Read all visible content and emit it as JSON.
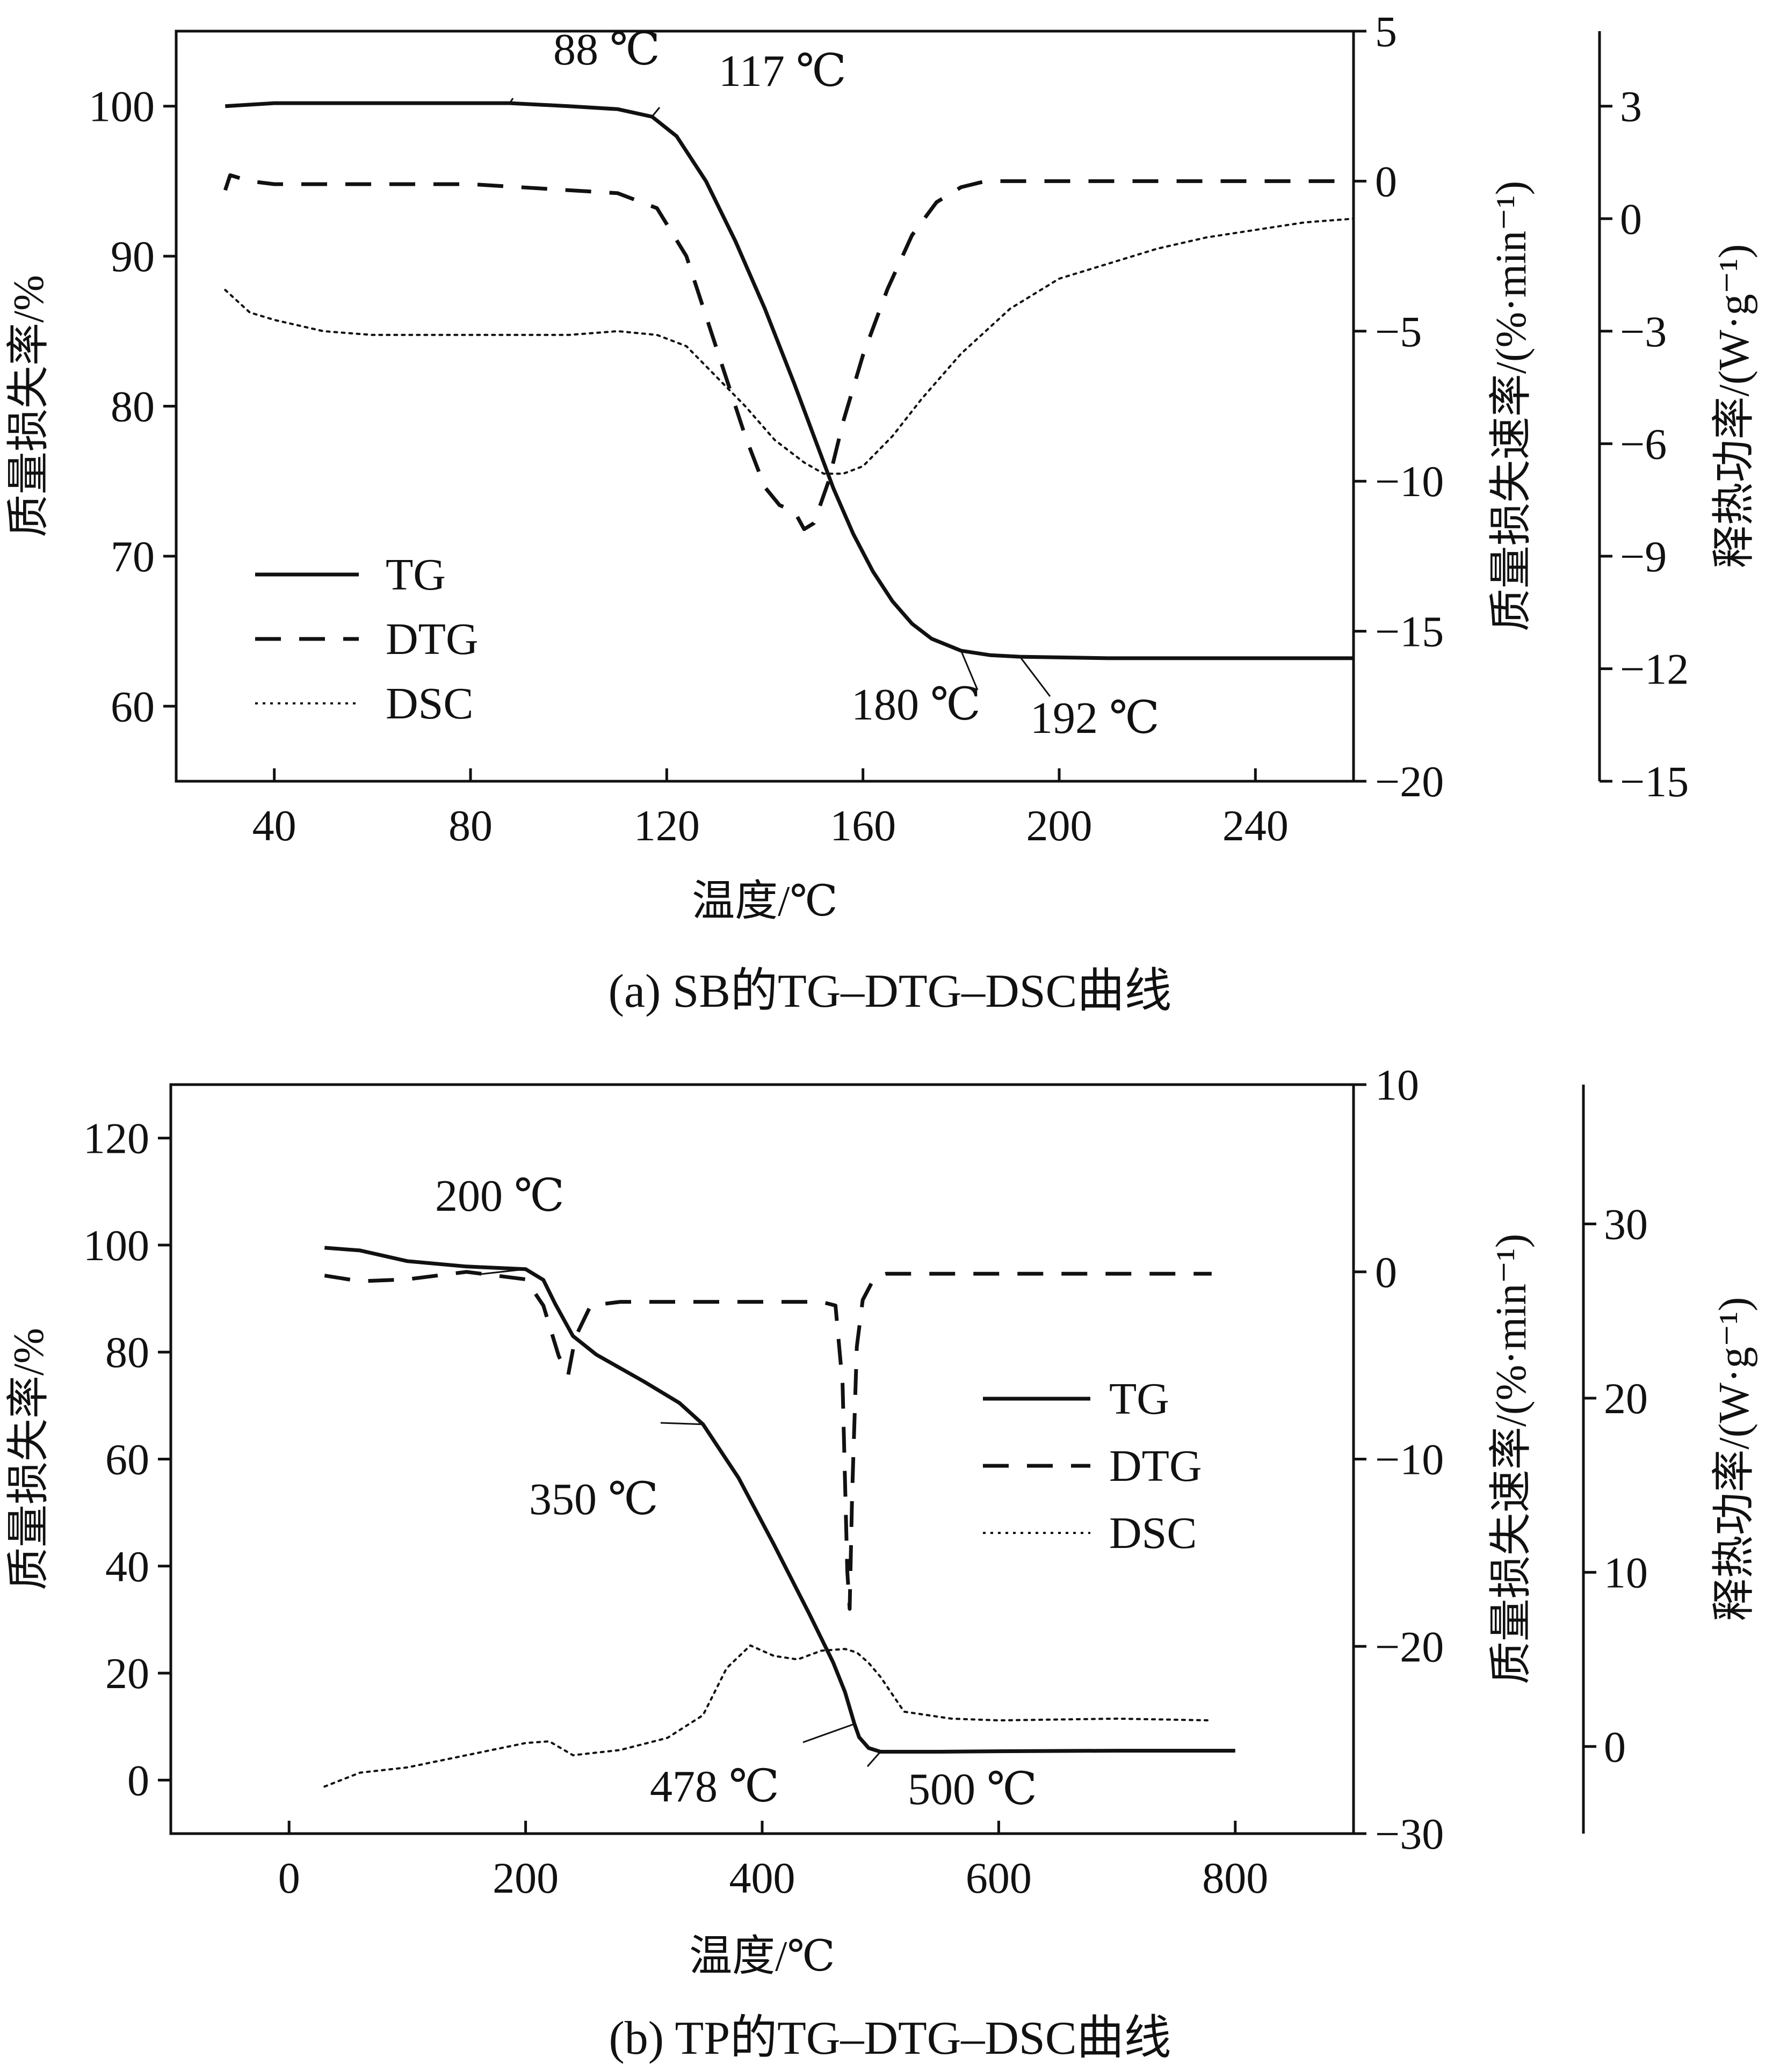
{
  "chart_data": [
    {
      "type": "line",
      "caption": "(a)  SB的TG–DTG–DSC曲线",
      "xlabel": "温度/℃",
      "xlim": [
        20,
        260
      ],
      "xticks": [
        "40",
        "80",
        "120",
        "160",
        "200",
        "240"
      ],
      "y1": {
        "label": "质量损失率/%",
        "lim": [
          55,
          105
        ],
        "ticks": [
          "60",
          "70",
          "80",
          "90",
          "100"
        ]
      },
      "y2": {
        "label": "质量损失速率/(%·min⁻¹)",
        "lim": [
          -20,
          5
        ],
        "ticks": [
          "5",
          "0",
          "−5",
          "−10",
          "−15",
          "−20"
        ]
      },
      "y3": {
        "label": "释热功率/(W·g⁻¹)",
        "lim": [
          -15,
          5
        ],
        "ticks": [
          "3",
          "0",
          "−3",
          "−6",
          "−9",
          "−12",
          "−15"
        ]
      },
      "legend": {
        "position": "bottom-left",
        "entries": [
          "TG",
          "DTG",
          "DSC"
        ]
      },
      "series": [
        {
          "name": "TG",
          "axis": "y1",
          "style": "solid",
          "x": [
            30,
            40,
            60,
            80,
            88,
            100,
            110,
            117,
            122,
            128,
            134,
            140,
            146,
            150,
            154,
            158,
            162,
            166,
            170,
            174,
            180,
            186,
            192,
            210,
            240,
            260
          ],
          "y": [
            100.0,
            100.2,
            100.2,
            100.2,
            100.2,
            100.0,
            99.8,
            99.3,
            98.0,
            95.0,
            91.0,
            86.5,
            81.5,
            78.0,
            74.5,
            71.5,
            69.0,
            67.0,
            65.5,
            64.5,
            63.7,
            63.4,
            63.3,
            63.2,
            63.2,
            63.2
          ]
        },
        {
          "name": "DTG",
          "axis": "y2",
          "style": "dashed",
          "x": [
            30,
            31,
            35,
            40,
            60,
            80,
            100,
            110,
            118,
            124,
            130,
            136,
            140,
            143,
            146,
            148,
            150,
            153,
            156,
            160,
            165,
            170,
            175,
            180,
            185,
            190,
            210,
            240,
            260
          ],
          "y": [
            -0.3,
            0.2,
            0.0,
            -0.1,
            -0.1,
            -0.1,
            -0.3,
            -0.4,
            -0.9,
            -2.5,
            -5.5,
            -8.5,
            -10.2,
            -10.8,
            -11.0,
            -11.6,
            -11.4,
            -10.0,
            -8.0,
            -5.8,
            -3.6,
            -1.8,
            -0.7,
            -0.2,
            0.0,
            0.0,
            0.0,
            0.0,
            0.0
          ]
        },
        {
          "name": "DSC",
          "axis": "y3",
          "style": "dotted",
          "x": [
            30,
            35,
            40,
            50,
            60,
            80,
            100,
            110,
            118,
            124,
            130,
            136,
            142,
            148,
            152,
            156,
            160,
            166,
            172,
            180,
            190,
            200,
            210,
            220,
            230,
            240,
            250,
            260
          ],
          "y": [
            -1.9,
            -2.5,
            -2.7,
            -3.0,
            -3.1,
            -3.1,
            -3.1,
            -3.0,
            -3.1,
            -3.4,
            -4.2,
            -5.0,
            -5.9,
            -6.5,
            -6.8,
            -6.8,
            -6.6,
            -5.8,
            -4.8,
            -3.6,
            -2.4,
            -1.6,
            -1.2,
            -0.8,
            -0.5,
            -0.3,
            -0.1,
            0.0
          ]
        }
      ],
      "annotations": [
        {
          "text": "88 ℃",
          "x": 88,
          "y": 100.2
        },
        {
          "text": "117 ℃",
          "x": 117,
          "y": 99.3
        },
        {
          "text": "180 ℃",
          "x": 180,
          "y": 63.7
        },
        {
          "text": "192 ℃",
          "x": 192,
          "y": 63.3
        }
      ]
    },
    {
      "type": "line",
      "caption": "(b)  TP的TG–DTG–DSC曲线",
      "xlabel": "温度/℃",
      "xlim": [
        -100,
        900
      ],
      "xticks": [
        "0",
        "200",
        "400",
        "600",
        "800"
      ],
      "y1": {
        "label": "质量损失率/%",
        "lim": [
          -10,
          130
        ],
        "ticks": [
          "0",
          "20",
          "40",
          "60",
          "80",
          "100",
          "120"
        ]
      },
      "y2": {
        "label": "质量损失速率/(%·min⁻¹)",
        "lim": [
          -30,
          10
        ],
        "ticks": [
          "10",
          "0",
          "−10",
          "−20",
          "−30"
        ]
      },
      "y3": {
        "label": "释热功率/(W·g⁻¹)",
        "lim": [
          -5,
          38
        ],
        "ticks": [
          "0",
          "10",
          "20",
          "30"
        ]
      },
      "legend": {
        "position": "center-right",
        "entries": [
          "TG",
          "DTG",
          "DSC"
        ]
      },
      "series": [
        {
          "name": "TG",
          "axis": "y1",
          "style": "solid",
          "x": [
            30,
            60,
            100,
            150,
            200,
            215,
            225,
            240,
            260,
            300,
            330,
            350,
            380,
            410,
            440,
            460,
            470,
            476,
            478,
            482,
            490,
            500,
            550,
            600,
            700,
            800
          ],
          "y": [
            99.5,
            99.0,
            97.0,
            96.0,
            95.5,
            93.5,
            89.0,
            83.0,
            79.5,
            74.5,
            70.5,
            66.5,
            56.5,
            44.0,
            31.0,
            22.0,
            16.5,
            12.0,
            10.5,
            8.0,
            6.0,
            5.3,
            5.3,
            5.4,
            5.5,
            5.5
          ]
        },
        {
          "name": "DTG",
          "axis": "y2",
          "style": "dashed",
          "x": [
            30,
            60,
            100,
            150,
            200,
            215,
            228,
            236,
            242,
            255,
            280,
            320,
            380,
            420,
            450,
            462,
            468,
            472,
            474,
            476,
            480,
            485,
            495,
            505,
            550,
            600,
            700,
            780
          ],
          "y": [
            -0.2,
            -0.5,
            -0.4,
            0.0,
            -0.4,
            -1.8,
            -4.5,
            -5.5,
            -3.5,
            -1.8,
            -1.6,
            -1.6,
            -1.6,
            -1.6,
            -1.6,
            -1.8,
            -6.0,
            -16.0,
            -18.0,
            -12.0,
            -4.0,
            -1.5,
            -0.3,
            -0.1,
            -0.1,
            -0.1,
            -0.1,
            -0.1
          ]
        },
        {
          "name": "DSC",
          "axis": "y3",
          "style": "dotted",
          "x": [
            30,
            60,
            100,
            150,
            200,
            220,
            240,
            280,
            320,
            350,
            370,
            390,
            410,
            430,
            450,
            470,
            480,
            490,
            500,
            520,
            560,
            600,
            700,
            780
          ],
          "y": [
            -2.3,
            -1.5,
            -1.2,
            -0.5,
            0.2,
            0.3,
            -0.5,
            -0.2,
            0.5,
            1.8,
            4.5,
            5.8,
            5.2,
            5.0,
            5.5,
            5.6,
            5.4,
            4.8,
            4.0,
            2.0,
            1.6,
            1.5,
            1.6,
            1.5
          ]
        }
      ],
      "annotations": [
        {
          "text": "200 ℃",
          "x": 200,
          "y": 95.5
        },
        {
          "text": "350 ℃",
          "x": 350,
          "y": 66.5
        },
        {
          "text": "478 ℃",
          "x": 478,
          "y": 10.5
        },
        {
          "text": "500 ℃",
          "x": 500,
          "y": 5.3
        }
      ]
    }
  ]
}
